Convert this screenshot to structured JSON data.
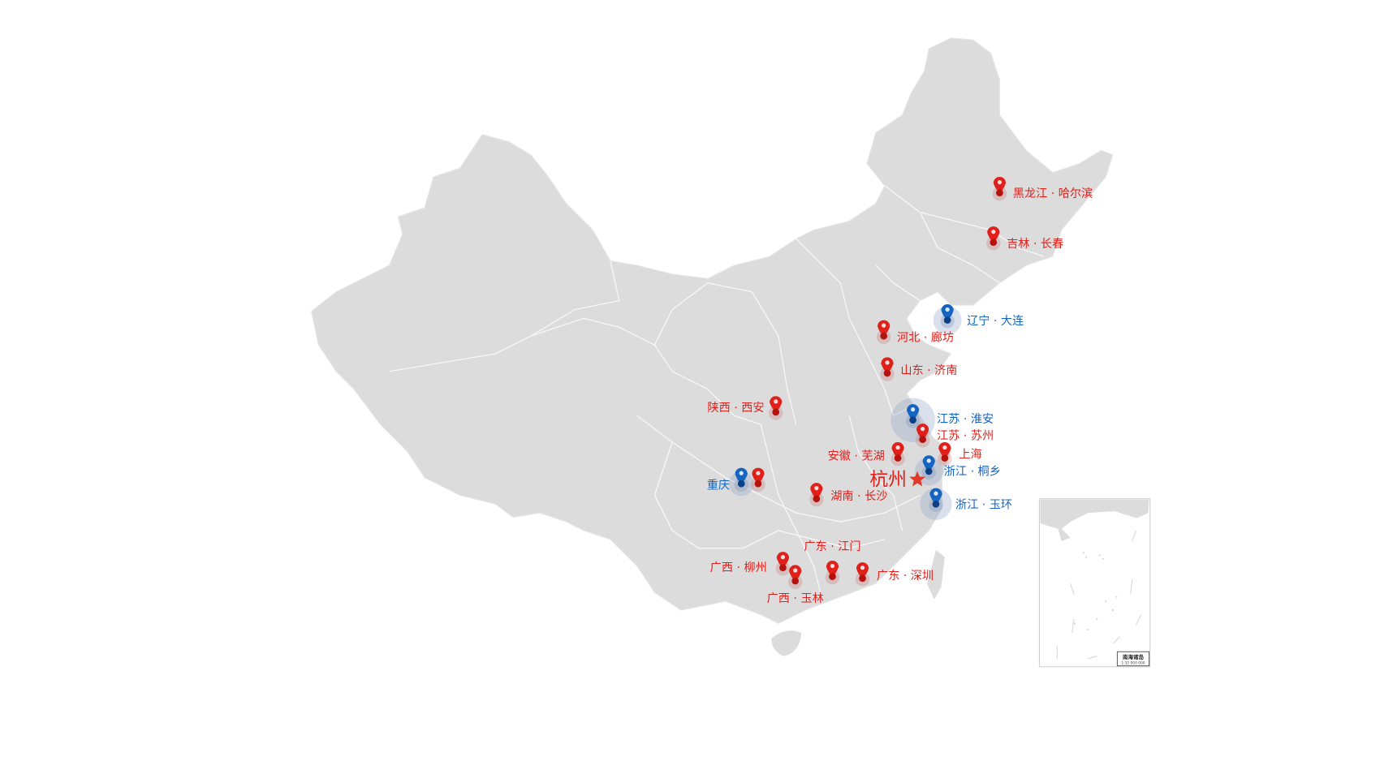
{
  "colors": {
    "land": "#dcdcdc",
    "border": "#f4f4f4",
    "red": "#e0201b",
    "blue": "#1565c0",
    "star": "#e03a2a"
  },
  "capital": {
    "label": "杭州",
    "icon": "star-icon"
  },
  "markers": [
    {
      "label": "黑龙江 · 哈尔滨",
      "color": "red"
    },
    {
      "label": "吉林 · 长春",
      "color": "red"
    },
    {
      "label": "辽宁 · 大连",
      "color": "blue"
    },
    {
      "label": "河北 · 廊坊",
      "color": "red"
    },
    {
      "label": "山东 · 济南",
      "color": "red"
    },
    {
      "label": "陕西 · 西安",
      "color": "red"
    },
    {
      "label": "江苏 · 淮安",
      "color": "blue"
    },
    {
      "label": "江苏 · 苏州",
      "color": "red"
    },
    {
      "label": "安徽 · 芜湖",
      "color": "red"
    },
    {
      "label": "上海",
      "color": "red"
    },
    {
      "label": "浙江 · 桐乡",
      "color": "blue"
    },
    {
      "label": "重庆",
      "color": "blue"
    },
    {
      "label": "",
      "color": "red"
    },
    {
      "label": "湖南 · 长沙",
      "color": "red"
    },
    {
      "label": "浙江 · 玉环",
      "color": "blue"
    },
    {
      "label": "广东 · 江门",
      "color": "red"
    },
    {
      "label": "广西 · 柳州",
      "color": "red"
    },
    {
      "label": "广西 · 玉林",
      "color": "red"
    },
    {
      "label": "广东 · 深圳",
      "color": "red"
    }
  ],
  "inset": {
    "title": "南海诸岛",
    "scale": "1:32 000 000"
  }
}
